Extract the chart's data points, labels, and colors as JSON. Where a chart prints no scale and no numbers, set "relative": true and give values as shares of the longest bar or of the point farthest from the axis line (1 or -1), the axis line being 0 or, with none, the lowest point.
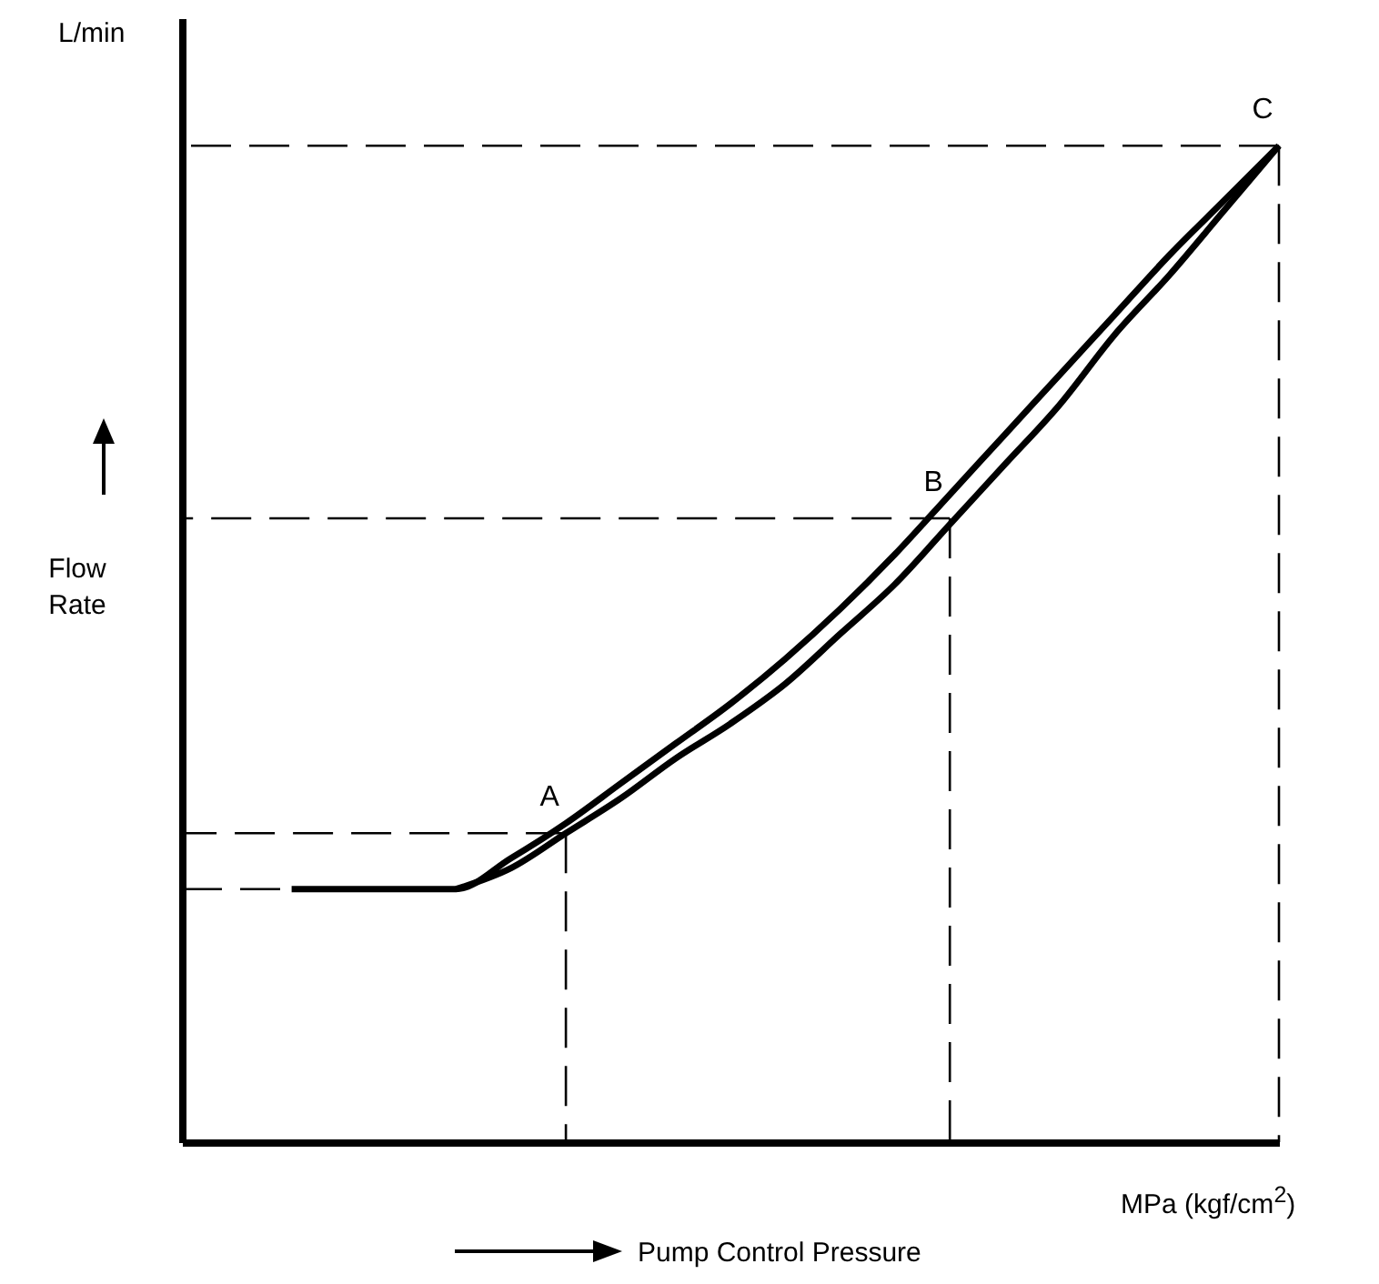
{
  "chart_data": {
    "type": "line",
    "relative": true,
    "xlabel": "Pump Control Pressure",
    "ylabel": "Flow Rate",
    "line_style": "solid",
    "categories": [
      null,
      null,
      null,
      null,
      null,
      null,
      null,
      null,
      null,
      null,
      null,
      null,
      null,
      null,
      null,
      null,
      null,
      null,
      null,
      null,
      null
    ],
    "annotations": [
      "L/min",
      "MPa (kgf/cm$^{2}$)",
      {
        "text": "A",
        "y": 0.31
      },
      {
        "text": "B",
        "y": 0.626
      },
      {
        "text": "C",
        "y": 1
      }
    ],
    "series": [
      {
        "color": "#000000",
        "values": [
          null,
          null,
          0.254,
          0.254,
          0.254,
          0.254,
          0.285,
          0.32,
          0.36,
          0.4,
          0.44,
          0.485,
          0.535,
          0.59,
          0.65,
          0.71,
          0.77,
          0.83,
          0.89,
          0.945,
          1
        ]
      },
      {
        "color": "#000000",
        "values": [
          null,
          null,
          null,
          null,
          null,
          0.254,
          0.275,
          0.31,
          0.345,
          0.385,
          0.42,
          0.46,
          0.51,
          0.56,
          0.62,
          0.68,
          0.74,
          0.81,
          0.87,
          0.935,
          1
        ]
      }
    ],
    "ref_lines": [
      {
        "axis": "y",
        "value": 0.254,
        "line_style": "dashed"
      }
    ]
  }
}
